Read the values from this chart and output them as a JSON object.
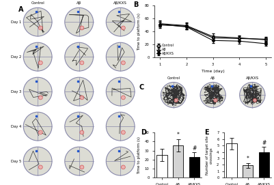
{
  "panel_B": {
    "days": [
      1,
      2,
      3,
      4,
      5
    ],
    "control_mean": [
      50,
      48,
      30,
      29,
      28
    ],
    "control_err": [
      5,
      5,
      4,
      4,
      4
    ],
    "abeta_mean": [
      52,
      49,
      32,
      30,
      27
    ],
    "abeta_err": [
      5,
      5,
      5,
      4,
      4
    ],
    "abkxs_mean": [
      51,
      47,
      26,
      25,
      21
    ],
    "abkxs_err": [
      4,
      4,
      4,
      4,
      3
    ],
    "ylabel": "Time to platform (s)",
    "xlabel": "Time (day)",
    "ylim": [
      0,
      80
    ],
    "yticks": [
      0,
      20,
      40,
      60,
      80
    ],
    "legend": [
      "Control",
      "Aβ",
      "Aβ/KXS"
    ]
  },
  "panel_D": {
    "categories": [
      "Control",
      "Aβ",
      "Aβ/KXS"
    ],
    "means": [
      25,
      36,
      23
    ],
    "errors": [
      7,
      7,
      5
    ],
    "colors": [
      "white",
      "lightgray",
      "black"
    ],
    "ylabel": "Time to platform (s)",
    "ylim": [
      0,
      50
    ],
    "yticks": [
      0,
      10,
      20,
      30,
      40,
      50
    ],
    "stars": [
      "",
      "*",
      "#"
    ]
  },
  "panel_E": {
    "categories": [
      "Control",
      "Aβ",
      "Aβ/KXS"
    ],
    "means": [
      5.3,
      1.9,
      4.0
    ],
    "errors": [
      0.9,
      0.4,
      0.8
    ],
    "colors": [
      "white",
      "lightgray",
      "black"
    ],
    "ylabel": "Number of target site\ncrossings",
    "ylim": [
      0,
      7
    ],
    "yticks": [
      0,
      1,
      2,
      3,
      4,
      5,
      6,
      7
    ],
    "stars": [
      "",
      "*",
      "#"
    ]
  },
  "label_A": "A",
  "label_B": "B",
  "label_C": "C",
  "label_D": "D",
  "label_E": "E",
  "bg_color": "#dcdcd4",
  "day_labels": [
    "Day 1",
    "Day 2",
    "Day 3",
    "Day 4",
    "Day 5"
  ],
  "col_labels": [
    "Control",
    "Aβ",
    "Aβ/KXS"
  ]
}
